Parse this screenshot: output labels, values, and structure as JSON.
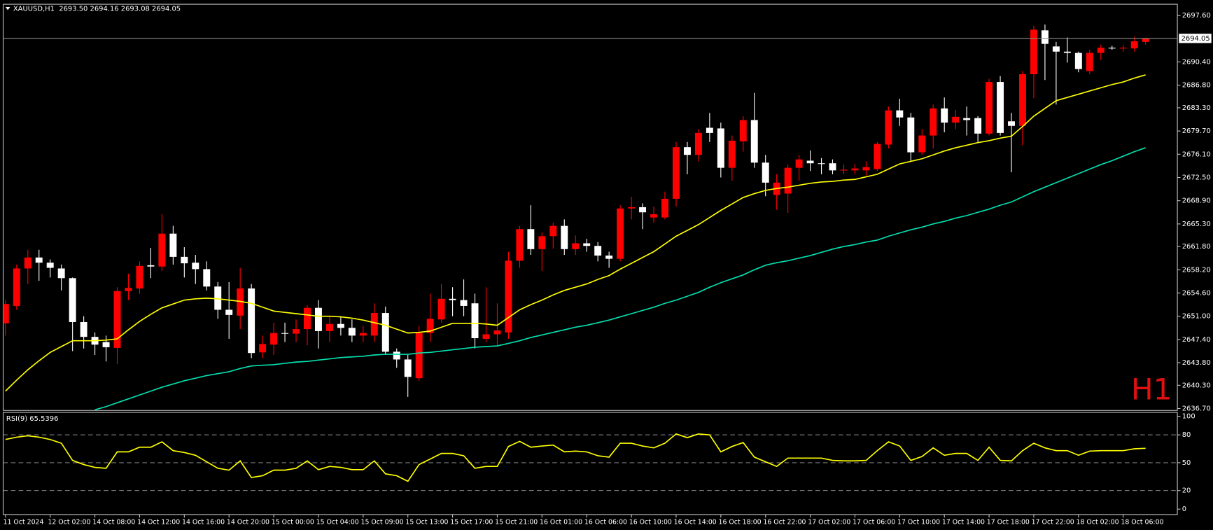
{
  "chart_data": [
    {
      "type": "candlestick",
      "title": "XAUUSD,H1  2693.50 2694.16 2693.08 2694.05",
      "categories": [
        "11 Oct 2024",
        null,
        null,
        null,
        "12 Oct 02:00",
        null,
        null,
        null,
        "14 Oct 08:00",
        null,
        null,
        null,
        "14 Oct 12:00",
        null,
        null,
        null,
        "14 Oct 16:00",
        null,
        null,
        null,
        "14 Oct 20:00",
        null,
        null,
        null,
        "15 Oct 00:00",
        null,
        null,
        null,
        "15 Oct 04:00",
        null,
        null,
        null,
        "15 Oct 09:00",
        null,
        null,
        null,
        "15 Oct 13:00",
        null,
        null,
        null,
        "15 Oct 17:00",
        null,
        null,
        null,
        "15 Oct 21:00",
        null,
        null,
        null,
        "16 Oct 01:00",
        null,
        null,
        null,
        "16 Oct 06:00",
        null,
        null,
        null,
        "16 Oct 10:00",
        null,
        null,
        null,
        "16 Oct 14:00",
        null,
        null,
        null,
        "16 Oct 18:00",
        null,
        null,
        null,
        "16 Oct 22:00",
        null,
        null,
        null,
        "17 Oct 02:00",
        null,
        null,
        null,
        "17 Oct 06:00",
        null,
        null,
        null,
        "17 Oct 10:00",
        null,
        null,
        null,
        "17 Oct 14:00",
        null,
        null,
        null,
        "17 Oct 18:00",
        null,
        null,
        null,
        "17 Oct 22:00",
        null,
        null,
        null,
        "18 Oct 02:00",
        null,
        null,
        null,
        "18 Oct 06:00",
        null,
        null
      ],
      "open": [
        2649.9,
        2652.6,
        2658.4,
        2660.1,
        2659.3,
        2658.4,
        2656.9,
        2650.1,
        2647.8,
        2647.0,
        2646.1,
        2654.9,
        2655.3,
        2658.9,
        2658.7,
        2663.8,
        2660.2,
        2659.3,
        2658.3,
        2655.6,
        2652.0,
        2651.1,
        2655.3,
        2645.4,
        2646.6,
        2648.4,
        2648.3,
        2649.0,
        2652.3,
        2648.7,
        2649.8,
        2649.2,
        2648.0,
        2648.0,
        2651.5,
        2645.5,
        2644.3,
        2641.4,
        2648.4,
        2650.5,
        2653.7,
        2653.5,
        2653.0,
        2647.5,
        2648.2,
        2648.5,
        2659.6,
        2664.5,
        2661.4,
        2663.4,
        2665.0,
        2661.4,
        2662.3,
        2661.9,
        2660.4,
        2659.9,
        2667.7,
        2667.9,
        2666.3,
        2666.3,
        2669.2,
        2677.2,
        2676.0,
        2680.2,
        2680.1,
        2674.0,
        2678.1,
        2681.4,
        2674.8,
        2669.8,
        2670.0,
        2674.0,
        2675.1,
        2674.7,
        2674.7,
        2673.6,
        2673.6,
        2673.6,
        2673.8,
        2677.6,
        2682.9,
        2681.8,
        2676.4,
        2679.0,
        2683.2,
        2681.0,
        2681.7,
        2681.7,
        2679.3,
        2687.3,
        2681.2,
        2680.5,
        2688.5,
        2695.3,
        2692.8,
        2692.0,
        2691.8,
        2689.0,
        2691.8,
        2692.6,
        2692.5,
        2692.5,
        2693.5
      ],
      "high": [
        2653.5,
        2659.0,
        2661.3,
        2661.3,
        2659.8,
        2659.0,
        2657.0,
        2651.0,
        2648.5,
        2648.0,
        2655.5,
        2657.6,
        2659.5,
        2661.6,
        2666.8,
        2665.0,
        2661.7,
        2660.5,
        2659.5,
        2656.3,
        2656.3,
        2658.5,
        2656.0,
        2648.0,
        2650.0,
        2650.0,
        2650.5,
        2652.7,
        2653.5,
        2651.0,
        2651.0,
        2650.5,
        2649.5,
        2653.0,
        2652.5,
        2646.0,
        2645.0,
        2649.5,
        2654.5,
        2656.0,
        2655.5,
        2656.7,
        2654.5,
        2655.5,
        2653.0,
        2661.0,
        2665.0,
        2668.2,
        2664.0,
        2665.5,
        2666.0,
        2663.5,
        2663.0,
        2662.5,
        2661.0,
        2668.2,
        2669.5,
        2668.5,
        2668.0,
        2670.3,
        2678.0,
        2678.0,
        2680.0,
        2682.5,
        2681.0,
        2679.0,
        2682.0,
        2685.6,
        2676.0,
        2673.0,
        2674.5,
        2676.0,
        2676.7,
        2675.5,
        2675.3,
        2674.5,
        2674.6,
        2675.0,
        2678.0,
        2683.5,
        2684.7,
        2682.5,
        2680.0,
        2683.8,
        2684.9,
        2683.0,
        2683.5,
        2682.0,
        2687.8,
        2688.2,
        2682.5,
        2689.0,
        2696.0,
        2696.2,
        2693.5,
        2694.2,
        2692.0,
        2692.3,
        2693.1,
        2692.9,
        2693.0,
        2694.3,
        2694.16
      ],
      "low": [
        2648.0,
        2652.0,
        2656.0,
        2656.5,
        2657.0,
        2655.0,
        2645.6,
        2646.0,
        2645.0,
        2644.0,
        2643.6,
        2653.5,
        2654.5,
        2656.9,
        2658.0,
        2659.0,
        2657.0,
        2656.0,
        2655.0,
        2650.6,
        2647.5,
        2649.0,
        2644.5,
        2644.5,
        2645.0,
        2647.0,
        2647.0,
        2646.5,
        2646.0,
        2647.0,
        2648.0,
        2647.0,
        2647.0,
        2647.0,
        2645.0,
        2643.0,
        2638.5,
        2641.0,
        2647.0,
        2650.0,
        2651.0,
        2651.0,
        2646.0,
        2647.0,
        2646.5,
        2647.5,
        2658.5,
        2660.5,
        2658.0,
        2661.5,
        2660.5,
        2660.5,
        2661.0,
        2659.5,
        2658.5,
        2659.5,
        2666.0,
        2664.5,
        2665.5,
        2666.0,
        2668.0,
        2673.0,
        2675.0,
        2678.0,
        2672.5,
        2672.0,
        2676.5,
        2674.0,
        2669.6,
        2667.5,
        2667.0,
        2672.0,
        2673.5,
        2673.0,
        2673.0,
        2673.0,
        2673.0,
        2672.8,
        2673.5,
        2677.0,
        2680.5,
        2675.0,
        2676.0,
        2677.0,
        2679.5,
        2680.0,
        2679.0,
        2678.0,
        2679.0,
        2679.0,
        2673.3,
        2677.5,
        2684.8,
        2687.6,
        2683.8,
        2690.3,
        2688.8,
        2688.5,
        2690.7,
        2692.3,
        2692.0,
        2692.0,
        2693.08
      ],
      "close": [
        2652.9,
        2658.4,
        2660.1,
        2659.3,
        2658.5,
        2656.9,
        2650.1,
        2647.8,
        2646.6,
        2646.2,
        2654.9,
        2655.4,
        2658.8,
        2658.7,
        2663.8,
        2660.2,
        2659.2,
        2658.3,
        2655.6,
        2652.0,
        2651.2,
        2655.3,
        2645.3,
        2646.7,
        2648.4,
        2648.3,
        2649.0,
        2652.3,
        2648.7,
        2649.8,
        2649.2,
        2648.0,
        2648.4,
        2651.5,
        2645.5,
        2644.3,
        2641.6,
        2648.4,
        2650.6,
        2653.7,
        2653.5,
        2652.6,
        2647.6,
        2648.2,
        2648.8,
        2659.6,
        2664.5,
        2661.4,
        2663.4,
        2665.0,
        2661.4,
        2662.3,
        2661.9,
        2660.4,
        2659.9,
        2667.7,
        2667.9,
        2667.1,
        2666.8,
        2669.2,
        2677.2,
        2676.0,
        2679.4,
        2679.4,
        2674.0,
        2678.2,
        2681.4,
        2674.8,
        2671.7,
        2671.7,
        2674.0,
        2675.3,
        2674.7,
        2674.6,
        2673.6,
        2673.7,
        2673.9,
        2674.1,
        2677.7,
        2682.9,
        2681.8,
        2676.4,
        2679.0,
        2683.2,
        2681.0,
        2681.9,
        2681.4,
        2679.3,
        2687.3,
        2679.4,
        2680.5,
        2688.5,
        2695.4,
        2693.2,
        2692.0,
        2691.8,
        2689.3,
        2691.8,
        2692.6,
        2692.5,
        2692.6,
        2693.6,
        2694.05
      ],
      "up_color": "#ff0000",
      "down_color": "#ffffff",
      "overlays": [
        {
          "color": "#ffff00",
          "values": [
            2639.4,
            2641.1,
            2642.7,
            2644.1,
            2645.4,
            2646.3,
            2647.2,
            2647.2,
            2647.2,
            2647.3,
            2647.5,
            2648.9,
            2650.2,
            2651.3,
            2652.3,
            2652.9,
            2653.5,
            2653.7,
            2653.8,
            2653.7,
            2653.5,
            2653.3,
            2653.0,
            2652.4,
            2651.8,
            2651.6,
            2651.4,
            2651.2,
            2651.0,
            2651.0,
            2650.9,
            2650.7,
            2650.4,
            2650.0,
            2649.6,
            2649.0,
            2648.4,
            2648.5,
            2648.7,
            2649.3,
            2649.9,
            2649.9,
            2649.9,
            2649.8,
            2649.6,
            2650.8,
            2652.0,
            2652.8,
            2653.5,
            2654.3,
            2655.0,
            2655.5,
            2656.0,
            2656.7,
            2657.3,
            2658.3,
            2659.2,
            2660.1,
            2661.0,
            2662.2,
            2663.4,
            2664.3,
            2665.2,
            2666.3,
            2667.4,
            2668.4,
            2669.4,
            2670.0,
            2670.5,
            2670.8,
            2671.0,
            2671.3,
            2671.6,
            2671.8,
            2671.9,
            2672.1,
            2672.2,
            2672.6,
            2673.0,
            2673.8,
            2674.6,
            2675.0,
            2675.4,
            2676.0,
            2676.6,
            2677.1,
            2677.5,
            2677.9,
            2678.2,
            2678.6,
            2678.9,
            2680.4,
            2682.0,
            2683.2,
            2684.4,
            2684.9,
            2685.4,
            2685.9,
            2686.4,
            2686.9,
            2687.3,
            2687.9,
            2688.4
          ]
        },
        {
          "color": "#00e0b0",
          "values": [
            null,
            null,
            null,
            null,
            null,
            null,
            null,
            null,
            2636.5,
            2637.0,
            2637.6,
            2638.2,
            2638.8,
            2639.4,
            2640.0,
            2640.5,
            2641.0,
            2641.4,
            2641.8,
            2642.1,
            2642.4,
            2642.9,
            2643.3,
            2643.4,
            2643.5,
            2643.7,
            2643.9,
            2644.0,
            2644.2,
            2644.4,
            2644.6,
            2644.7,
            2644.8,
            2645.0,
            2645.1,
            2645.1,
            2645.1,
            2645.3,
            2645.4,
            2645.6,
            2645.8,
            2646.0,
            2646.2,
            2646.3,
            2646.4,
            2646.8,
            2647.2,
            2647.7,
            2648.1,
            2648.5,
            2648.9,
            2649.3,
            2649.6,
            2650.0,
            2650.4,
            2650.9,
            2651.4,
            2651.9,
            2652.4,
            2653.0,
            2653.5,
            2654.1,
            2654.7,
            2655.5,
            2656.2,
            2656.8,
            2657.4,
            2658.2,
            2658.9,
            2659.3,
            2659.6,
            2660.0,
            2660.4,
            2660.9,
            2661.4,
            2661.8,
            2662.1,
            2662.5,
            2662.8,
            2663.4,
            2663.9,
            2664.4,
            2664.8,
            2665.3,
            2665.7,
            2666.2,
            2666.6,
            2667.1,
            2667.6,
            2668.2,
            2668.7,
            2669.5,
            2670.3,
            2671.0,
            2671.7,
            2672.4,
            2673.1,
            2673.8,
            2674.5,
            2675.1,
            2675.8,
            2676.5,
            2677.1
          ]
        }
      ],
      "price_line": {
        "value": 2694.05,
        "label": "2694.05"
      },
      "timeframe_label": "H1",
      "ylim": [
        2636.46,
        2699.28
      ],
      "yticks": [
        {
          "value": 2697.6,
          "label": "2697.60"
        },
        {
          "value": 2690.4,
          "label": "2690.40"
        },
        {
          "value": 2686.8,
          "label": "2686.80"
        },
        {
          "value": 2683.3,
          "label": "2683.30"
        },
        {
          "value": 2679.7,
          "label": "2679.70"
        },
        {
          "value": 2676.1,
          "label": "2676.10"
        },
        {
          "value": 2672.5,
          "label": "2672.50"
        },
        {
          "value": 2668.9,
          "label": "2668.90"
        },
        {
          "value": 2665.3,
          "label": "2665.30"
        },
        {
          "value": 2661.8,
          "label": "2661.80"
        },
        {
          "value": 2658.2,
          "label": "2658.20"
        },
        {
          "value": 2654.6,
          "label": "2654.60"
        },
        {
          "value": 2651.0,
          "label": "2651.00"
        },
        {
          "value": 2647.4,
          "label": "2647.40"
        },
        {
          "value": 2643.8,
          "label": "2643.80"
        },
        {
          "value": 2640.3,
          "label": "2640.30"
        },
        {
          "value": 2636.7,
          "label": "2636.70"
        }
      ]
    },
    {
      "type": "line",
      "title": "RSI(9) 65.5396",
      "color": "#ffff00",
      "values": [
        75,
        77.5,
        79,
        77.5,
        75,
        71,
        52.5,
        48,
        45,
        44,
        61.7,
        61.7,
        66.7,
        66.7,
        72.5,
        63,
        61,
        58,
        51,
        44,
        42,
        52,
        34,
        36,
        42,
        42,
        44,
        52,
        42.5,
        46,
        45,
        42.5,
        42.5,
        52,
        38,
        36,
        30,
        48,
        54,
        60,
        60,
        57.5,
        44,
        46,
        46,
        67.5,
        73,
        66.7,
        68,
        69,
        61.7,
        62.5,
        61.7,
        57.5,
        56,
        71,
        71,
        68,
        66,
        71,
        81,
        77,
        81,
        80,
        61.7,
        67.5,
        71.7,
        56,
        51,
        46,
        55,
        55,
        55,
        55,
        52.5,
        52,
        52,
        52.5,
        63,
        72.5,
        68,
        52.5,
        56.7,
        66,
        58,
        60,
        60,
        52.5,
        66.7,
        52.5,
        52,
        63,
        71,
        66,
        63,
        63,
        58,
        62.5,
        63,
        63,
        63,
        65,
        65.5396
      ],
      "levels": [
        80,
        50,
        20
      ],
      "ylim": [
        -5.8,
        104.2
      ],
      "yticks": [
        100,
        80,
        50,
        20,
        0
      ]
    }
  ]
}
